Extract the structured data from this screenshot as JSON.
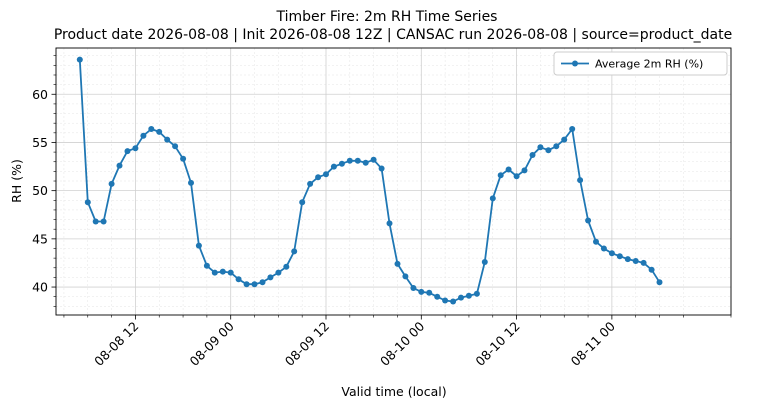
{
  "chart_data": {
    "type": "line",
    "title": "Timber Fire: 2m RH Time Series",
    "subtitle": "Product date 2026-08-08 | Init 2026-08-08 12Z | CANSAC run 2026-08-08 | source=product_date",
    "xlabel": "Valid time (local)",
    "ylabel": "RH (%)",
    "x_range": [
      "2026-08-08 02:00",
      "2026-08-11 15:00"
    ],
    "ylim": [
      37.1,
      64.8
    ],
    "x_ticks": [
      {
        "label": "08-08 12",
        "time": "2026-08-08 12:00"
      },
      {
        "label": "08-09 00",
        "time": "2026-08-09 00:00"
      },
      {
        "label": "08-09 12",
        "time": "2026-08-09 12:00"
      },
      {
        "label": "08-10 00",
        "time": "2026-08-10 00:00"
      },
      {
        "label": "08-10 12",
        "time": "2026-08-10 12:00"
      },
      {
        "label": "08-11 00",
        "time": "2026-08-11 00:00"
      }
    ],
    "y_ticks": [
      40,
      45,
      50,
      55,
      60
    ],
    "grid": true,
    "legend_position": "top-right",
    "series": [
      {
        "name": "Average 2m RH (%)",
        "color": "#1f77b4",
        "x": [
          "2026-08-08 05:00",
          "2026-08-08 06:00",
          "2026-08-08 07:00",
          "2026-08-08 08:00",
          "2026-08-08 09:00",
          "2026-08-08 10:00",
          "2026-08-08 11:00",
          "2026-08-08 12:00",
          "2026-08-08 13:00",
          "2026-08-08 14:00",
          "2026-08-08 15:00",
          "2026-08-08 16:00",
          "2026-08-08 17:00",
          "2026-08-08 18:00",
          "2026-08-08 19:00",
          "2026-08-08 20:00",
          "2026-08-08 21:00",
          "2026-08-08 22:00",
          "2026-08-08 23:00",
          "2026-08-09 00:00",
          "2026-08-09 01:00",
          "2026-08-09 02:00",
          "2026-08-09 03:00",
          "2026-08-09 04:00",
          "2026-08-09 05:00",
          "2026-08-09 06:00",
          "2026-08-09 07:00",
          "2026-08-09 08:00",
          "2026-08-09 09:00",
          "2026-08-09 10:00",
          "2026-08-09 11:00",
          "2026-08-09 12:00",
          "2026-08-09 13:00",
          "2026-08-09 14:00",
          "2026-08-09 15:00",
          "2026-08-09 16:00",
          "2026-08-09 17:00",
          "2026-08-09 18:00",
          "2026-08-09 19:00",
          "2026-08-09 20:00",
          "2026-08-09 21:00",
          "2026-08-09 22:00",
          "2026-08-09 23:00",
          "2026-08-10 00:00",
          "2026-08-10 01:00",
          "2026-08-10 02:00",
          "2026-08-10 03:00",
          "2026-08-10 04:00",
          "2026-08-10 05:00",
          "2026-08-10 06:00",
          "2026-08-10 07:00",
          "2026-08-10 08:00",
          "2026-08-10 09:00",
          "2026-08-10 10:00",
          "2026-08-10 11:00",
          "2026-08-10 12:00",
          "2026-08-10 13:00",
          "2026-08-10 14:00",
          "2026-08-10 15:00",
          "2026-08-10 16:00",
          "2026-08-10 17:00",
          "2026-08-10 18:00",
          "2026-08-10 19:00",
          "2026-08-10 20:00",
          "2026-08-10 21:00",
          "2026-08-10 22:00",
          "2026-08-10 23:00",
          "2026-08-11 00:00",
          "2026-08-11 01:00",
          "2026-08-11 02:00",
          "2026-08-11 03:00",
          "2026-08-11 04:00",
          "2026-08-11 05:00",
          "2026-08-11 06:00"
        ],
        "values": [
          63.6,
          48.8,
          46.8,
          46.8,
          50.7,
          52.6,
          54.1,
          54.4,
          55.7,
          56.4,
          56.1,
          55.3,
          54.6,
          53.3,
          50.8,
          44.3,
          42.2,
          41.5,
          41.6,
          41.5,
          40.8,
          40.3,
          40.3,
          40.5,
          41.0,
          41.5,
          42.1,
          43.7,
          48.8,
          50.7,
          51.4,
          51.7,
          52.5,
          52.8,
          53.1,
          53.1,
          52.9,
          53.2,
          52.3,
          46.6,
          42.4,
          41.1,
          39.9,
          39.5,
          39.4,
          39.0,
          38.6,
          38.5,
          38.9,
          39.1,
          39.3,
          42.6,
          49.2,
          51.6,
          52.2,
          51.5,
          52.1,
          53.7,
          54.5,
          54.2,
          54.6,
          55.3,
          56.4,
          51.1,
          46.9,
          44.7,
          44.0,
          43.5,
          43.2,
          42.9,
          42.7,
          42.5,
          41.8,
          40.5
        ]
      }
    ]
  }
}
